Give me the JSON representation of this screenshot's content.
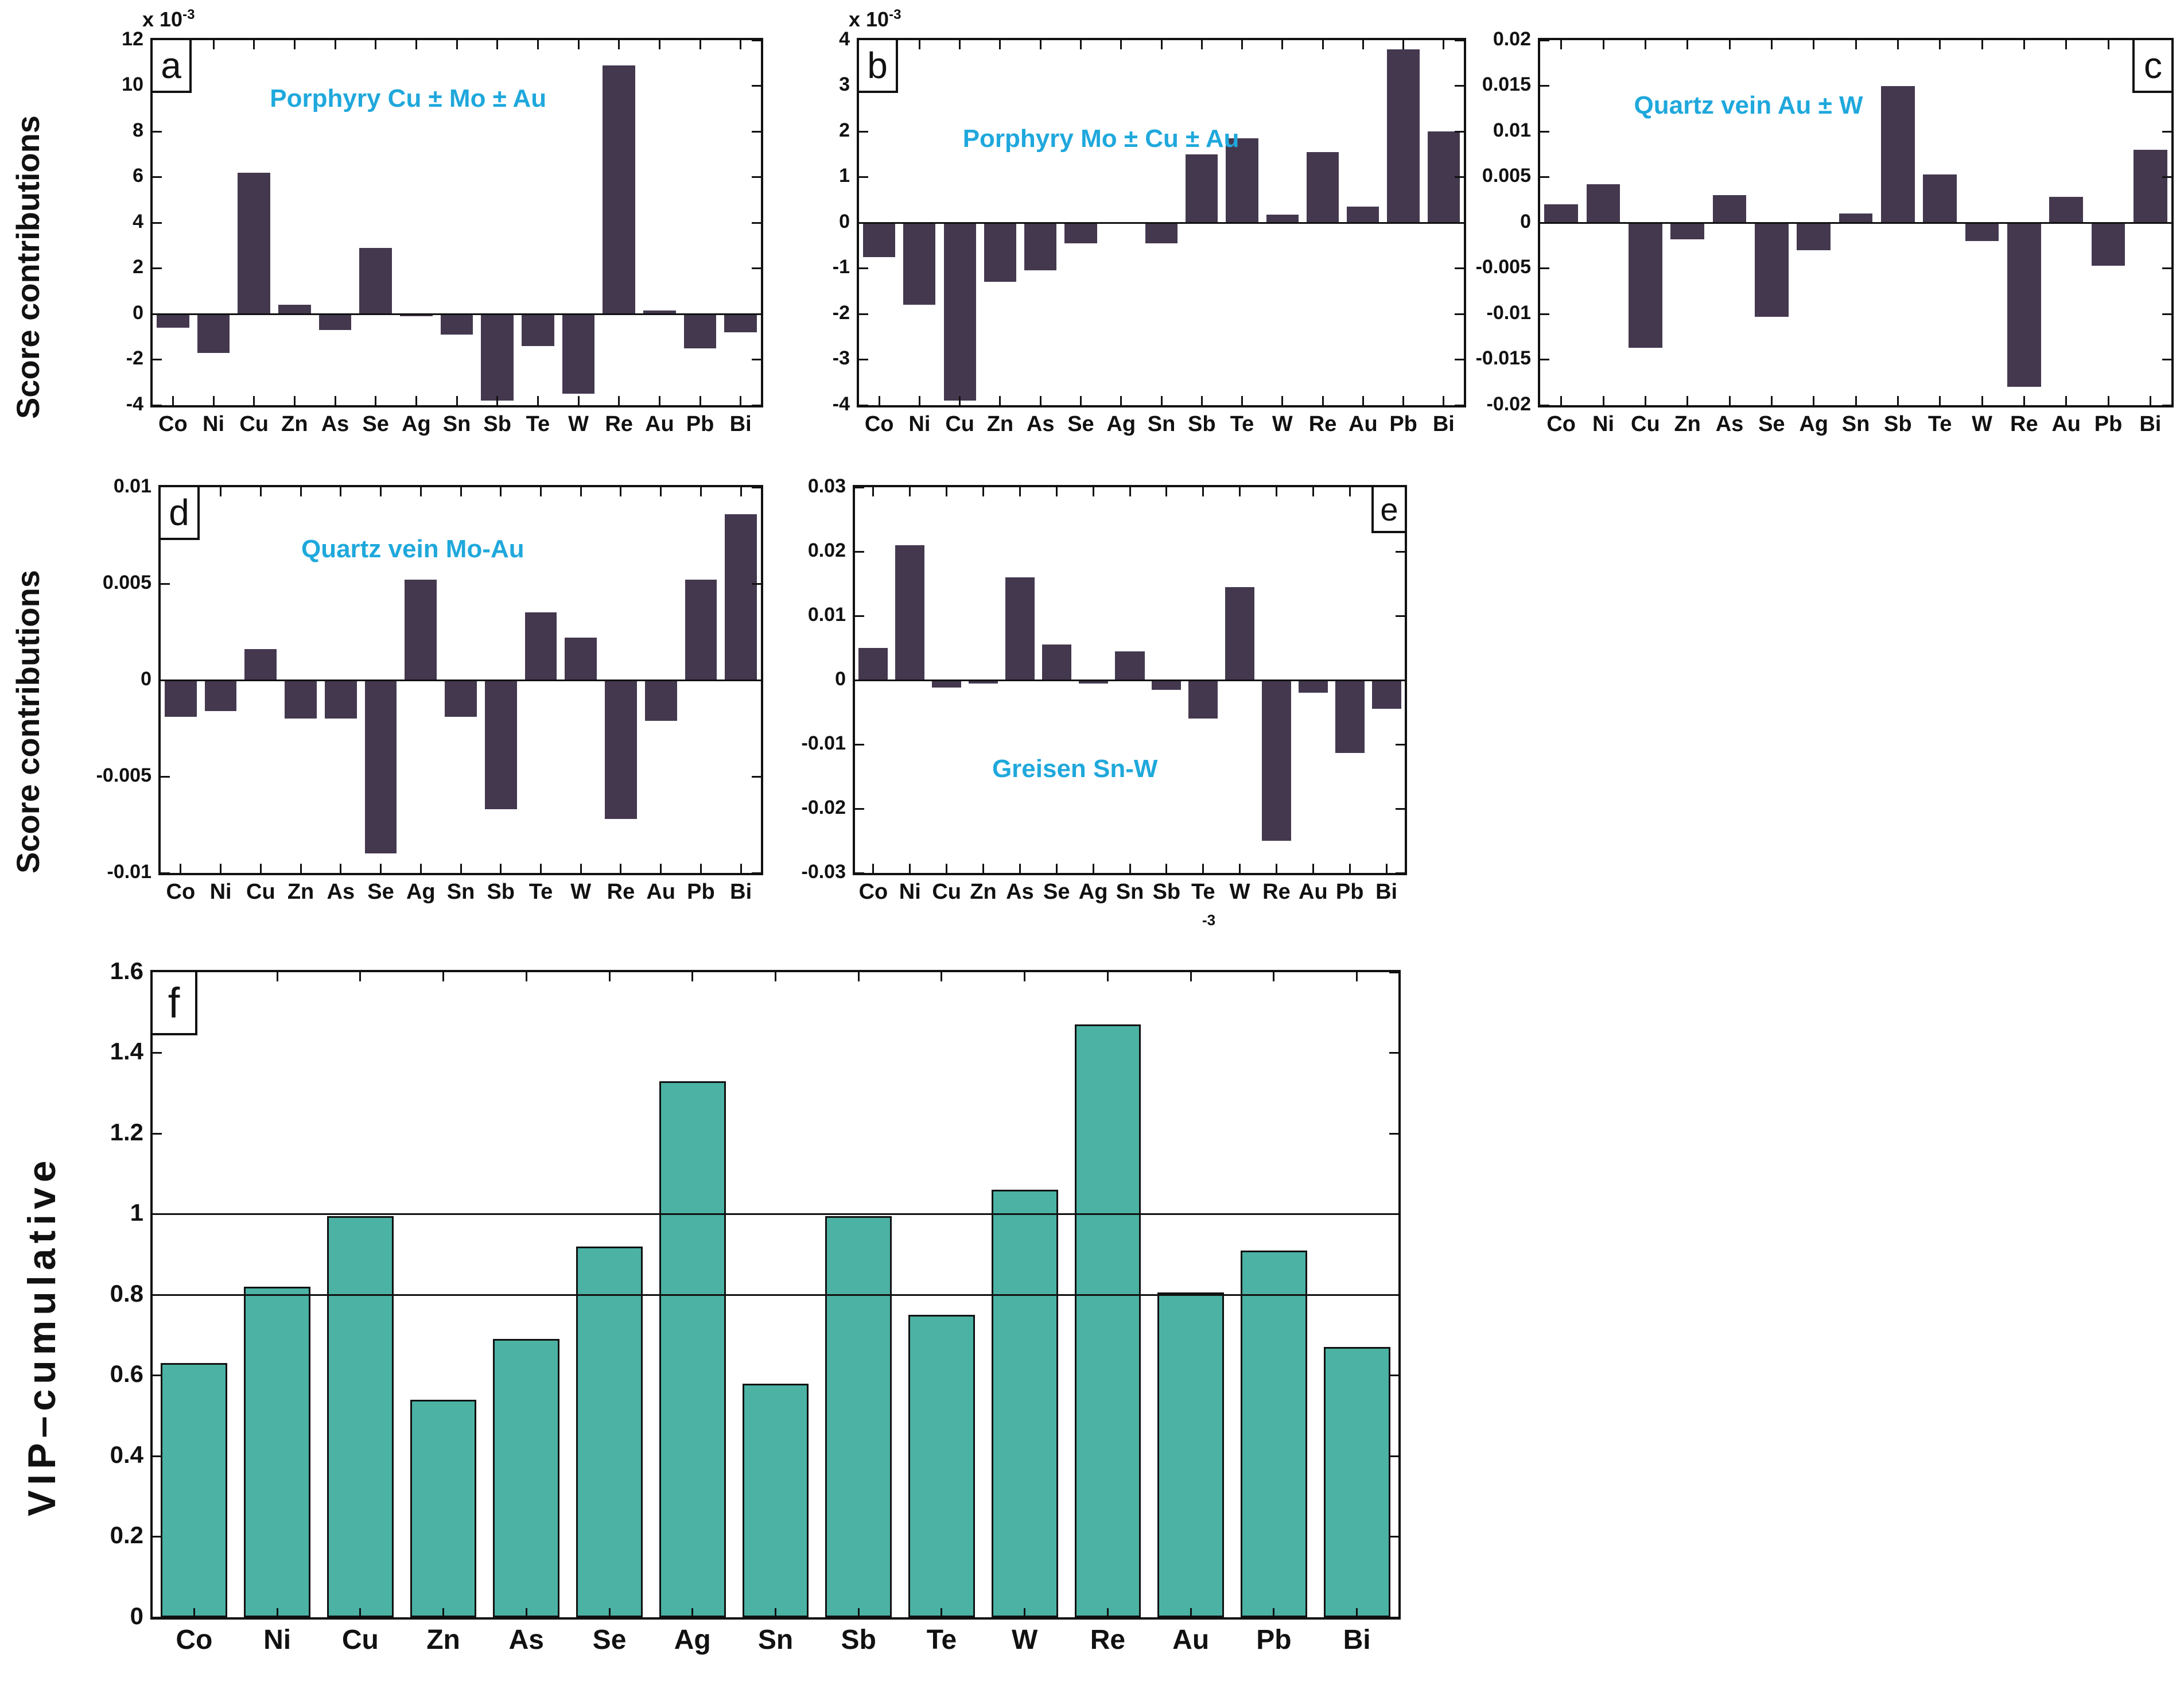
{
  "labels": {
    "score_contributions": "Score contributions",
    "vip_cumulative": "VIP–cumulative",
    "stray_exponent": "-3"
  },
  "colors": {
    "bar_dark_purple": "#44384F",
    "bar_teal": "#4BB2A4",
    "title_cyan": "#1FA8DC",
    "axis_black": "#111111"
  },
  "chart_data": {
    "type": "bar",
    "categories": [
      "Co",
      "Ni",
      "Cu",
      "Zn",
      "As",
      "Se",
      "Ag",
      "Sn",
      "Sb",
      "Te",
      "W",
      "Re",
      "Au",
      "Pb",
      "Bi"
    ],
    "panels": [
      {
        "id": "a",
        "letter": "a",
        "title": "Porphyry Cu ± Mo ± Au",
        "ylabel": "Score contributions",
        "multiplier": "x 10",
        "multiplier_exp": "-3",
        "ylim": [
          -4,
          12
        ],
        "grid": false,
        "yticks": {
          "labels": [
            "12",
            "10",
            "8",
            "6",
            "4",
            "2",
            "0",
            "-2",
            "-4"
          ],
          "values": [
            12,
            10,
            8,
            6,
            4,
            2,
            0,
            -2,
            -4
          ]
        },
        "values": [
          -0.6,
          -1.7,
          6.2,
          0.4,
          -0.7,
          2.9,
          -0.1,
          -0.9,
          -3.8,
          -1.4,
          -3.5,
          10.9,
          0.15,
          -1.5,
          -0.8
        ],
        "bar_color": "#44384F"
      },
      {
        "id": "b",
        "letter": "b",
        "title": "Porphyry Mo ± Cu ± Au",
        "ylabel": "Score contributions",
        "multiplier": "x 10",
        "multiplier_exp": "-3",
        "ylim": [
          -4,
          4
        ],
        "grid": false,
        "yticks": {
          "labels": [
            "4",
            "3",
            "2",
            "1",
            "0",
            "-1",
            "-2",
            "-3",
            "-4"
          ],
          "values": [
            4,
            3,
            2,
            1,
            0,
            -1,
            -2,
            -3,
            -4
          ]
        },
        "values": [
          -0.75,
          -1.8,
          -3.9,
          -1.3,
          -1.05,
          -0.45,
          -0.03,
          -0.45,
          1.5,
          1.85,
          0.18,
          1.55,
          0.35,
          3.8,
          2.0
        ],
        "bar_color": "#44384F"
      },
      {
        "id": "c",
        "letter": "c",
        "title": "Quartz vein Au ± W",
        "ylabel": "Score contributions",
        "multiplier": null,
        "multiplier_exp": null,
        "ylim": [
          -0.02,
          0.02
        ],
        "grid": false,
        "yticks": {
          "labels": [
            "0.02",
            "0.015",
            "0.01",
            "0.005",
            "0",
            "-0.005",
            "-0.01",
            "-0.015",
            "-0.02"
          ],
          "values": [
            0.02,
            0.015,
            0.01,
            0.005,
            0,
            -0.005,
            -0.01,
            -0.015,
            -0.02
          ]
        },
        "values": [
          0.002,
          0.0042,
          -0.0137,
          -0.0018,
          0.003,
          -0.0103,
          -0.003,
          0.001,
          0.015,
          0.0053,
          -0.002,
          -0.018,
          0.0028,
          -0.0047,
          0.008
        ],
        "bar_color": "#44384F"
      },
      {
        "id": "d",
        "letter": "d",
        "title": "Quartz vein Mo-Au",
        "ylabel": "Score contributions",
        "multiplier": null,
        "multiplier_exp": null,
        "ylim": [
          -0.01,
          0.01
        ],
        "grid": false,
        "yticks": {
          "labels": [
            "0.01",
            "0.005",
            "0",
            "-0.005",
            "-0.01"
          ],
          "values": [
            0.01,
            0.005,
            0,
            -0.005,
            -0.01
          ]
        },
        "values": [
          -0.0019,
          -0.0016,
          0.0016,
          -0.002,
          -0.002,
          -0.009,
          0.0052,
          -0.0019,
          -0.0067,
          0.0035,
          0.0022,
          -0.0072,
          -0.0021,
          0.0052,
          0.0086
        ],
        "bar_color": "#44384F"
      },
      {
        "id": "e",
        "letter": "e",
        "title": "Greisen Sn-W",
        "ylabel": "Score contributions",
        "multiplier": null,
        "multiplier_exp": null,
        "ylim": [
          -0.03,
          0.03
        ],
        "grid": false,
        "yticks": {
          "labels": [
            "0.03",
            "0.02",
            "0.01",
            "0",
            "-0.01",
            "-0.02",
            "-0.03"
          ],
          "values": [
            0.03,
            0.02,
            0.01,
            0,
            -0.01,
            -0.02,
            -0.03
          ]
        },
        "values": [
          0.005,
          0.021,
          -0.0012,
          -0.0005,
          0.016,
          0.0055,
          -0.0005,
          0.0045,
          -0.0015,
          -0.006,
          0.0145,
          -0.025,
          -0.002,
          -0.0113,
          -0.0045
        ],
        "bar_color": "#44384F"
      },
      {
        "id": "f",
        "letter": "f",
        "title": "",
        "ylabel": "VIP–cumulative",
        "multiplier": null,
        "multiplier_exp": null,
        "ylim": [
          0,
          1.6
        ],
        "grid": false,
        "ref_lines": [
          1.0,
          0.8
        ],
        "yticks": {
          "labels": [
            "1.6",
            "1.4",
            "1.2",
            "1",
            "0.8",
            "0.6",
            "0.4",
            "0.2",
            "0"
          ],
          "values": [
            1.6,
            1.4,
            1.2,
            1,
            0.8,
            0.6,
            0.4,
            0.2,
            0
          ]
        },
        "values": [
          0.63,
          0.82,
          0.995,
          0.54,
          0.69,
          0.92,
          1.33,
          0.58,
          0.995,
          0.75,
          1.06,
          1.47,
          0.805,
          0.91,
          0.67
        ],
        "bar_color": "#4BB2A4"
      }
    ]
  }
}
